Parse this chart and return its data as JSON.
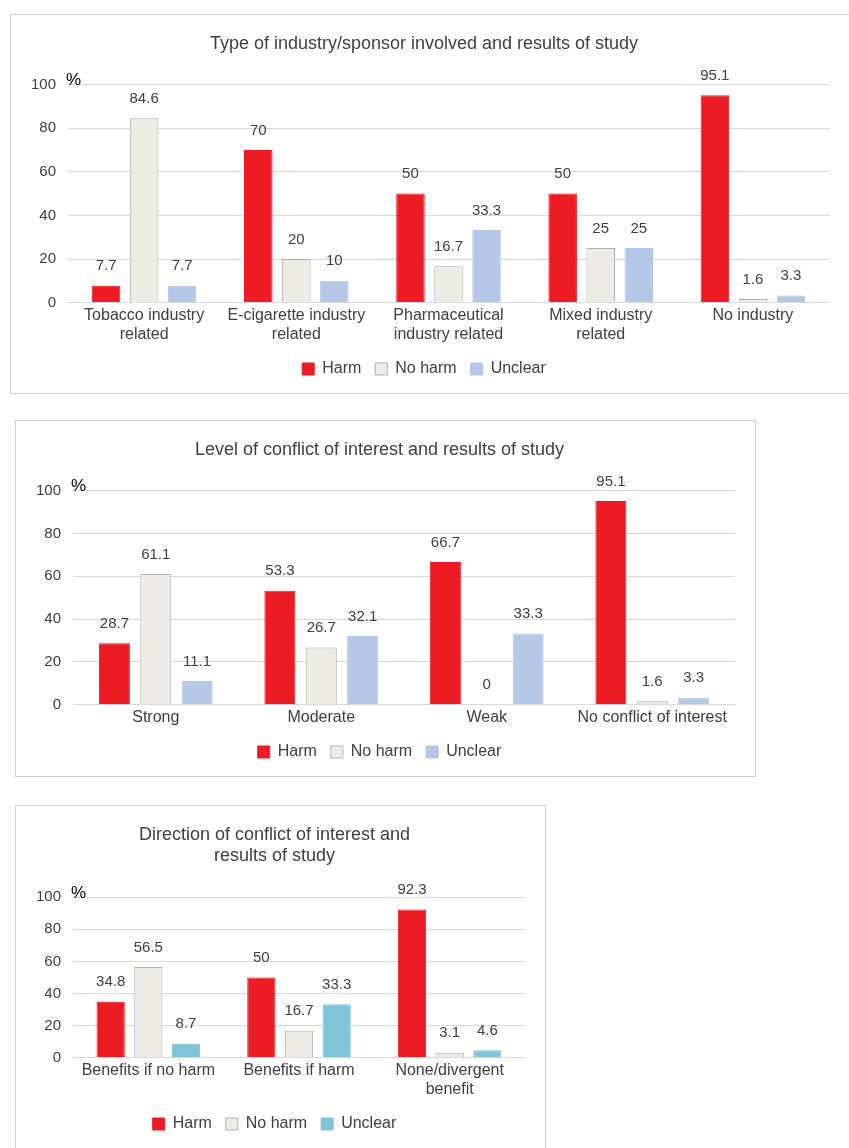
{
  "chart_data": [
    {
      "type": "bar",
      "title": "Type of industry/sponsor involved and results of study",
      "ylabel": "%",
      "categories": [
        "Tobacco industry related",
        "E-cigarette industry related",
        "Pharmaceutical industry related",
        "Mixed industry related",
        "No industry"
      ],
      "series": [
        {
          "name": "Harm",
          "color": "#ed1c24",
          "values": [
            7.7,
            70,
            50,
            50,
            95.1
          ]
        },
        {
          "name": "No harm",
          "color": "#ececE4",
          "values": [
            84.6,
            20,
            16.7,
            25,
            1.6
          ]
        },
        {
          "name": "Unclear",
          "color": "#b4c7e7",
          "values": [
            7.7,
            10,
            33.3,
            25,
            3.3
          ]
        }
      ],
      "ylim": [
        0,
        100
      ],
      "yticks": [
        0,
        20,
        40,
        60,
        80,
        100
      ],
      "grid": "y",
      "legend": "bottom",
      "data_labels": true
    },
    {
      "type": "bar",
      "title": "Level of conflict of interest and results of study",
      "ylabel": "%",
      "categories": [
        "Strong",
        "Moderate",
        "Weak",
        "No conflict of interest"
      ],
      "series": [
        {
          "name": "Harm",
          "color": "#ed1c24",
          "values": [
            28.7,
            53.3,
            66.7,
            95.1
          ]
        },
        {
          "name": "No harm",
          "color": "#ececE4",
          "values": [
            61.1,
            26.7,
            0,
            1.6
          ]
        },
        {
          "name": "Unclear",
          "color": "#b4c7e7",
          "values": [
            11.1,
            32.1,
            33.3,
            3.3
          ]
        }
      ],
      "ylim": [
        0,
        100
      ],
      "yticks": [
        0,
        20,
        40,
        60,
        80,
        100
      ],
      "grid": "y",
      "legend": "bottom",
      "data_labels": true
    },
    {
      "type": "bar",
      "title": "Direction of conflict of interest and results of study",
      "ylabel": "%",
      "categories": [
        "Benefits if no harm",
        "Benefits if harm",
        "None/divergent benefit"
      ],
      "series": [
        {
          "name": "Harm",
          "color": "#ed1c24",
          "values": [
            34.8,
            50,
            92.3
          ]
        },
        {
          "name": "No harm",
          "color": "#ececE4",
          "values": [
            56.5,
            16.7,
            3.1
          ]
        },
        {
          "name": "Unclear",
          "color": "#7fc4d8",
          "values": [
            8.7,
            33.3,
            4.6
          ]
        }
      ],
      "ylim": [
        0,
        100
      ],
      "yticks": [
        0,
        20,
        40,
        60,
        80,
        100
      ],
      "grid": "y",
      "legend": "bottom",
      "data_labels": true
    }
  ]
}
